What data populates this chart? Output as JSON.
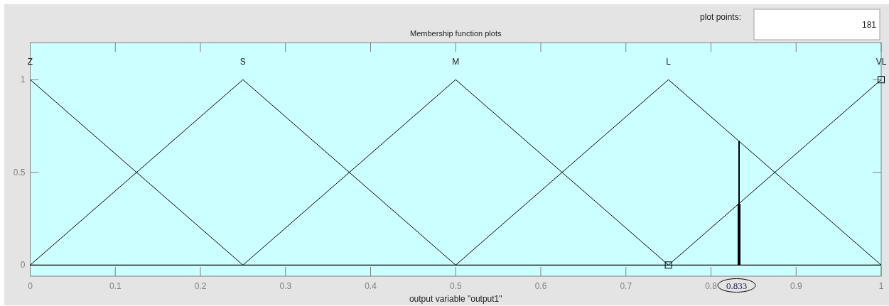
{
  "chart_data": {
    "type": "line",
    "title": "Membership function plots",
    "xlabel": "output variable \"output1\"",
    "xlim": [
      0,
      1
    ],
    "ylim": [
      -0.06,
      1.2
    ],
    "xticks": [
      0,
      0.1,
      0.2,
      0.3,
      0.4,
      0.5,
      0.6,
      0.7,
      0.8,
      0.9,
      1
    ],
    "yticks": [
      0,
      0.5,
      1
    ],
    "series": [
      {
        "name": "Z",
        "color": "#000000",
        "x": [
          0,
          0.25
        ],
        "values": [
          1,
          0
        ]
      },
      {
        "name": "S",
        "color": "#000000",
        "x": [
          0,
          0.25,
          0.5
        ],
        "values": [
          0,
          1,
          0
        ]
      },
      {
        "name": "M",
        "color": "#000000",
        "x": [
          0.25,
          0.5,
          0.75
        ],
        "values": [
          0,
          1,
          0
        ]
      },
      {
        "name": "L",
        "color": "#000000",
        "x": [
          0.5,
          0.75,
          1
        ],
        "values": [
          0,
          1,
          0
        ]
      },
      {
        "name": "VL",
        "color": "#000000",
        "x": [
          0.75,
          1
        ],
        "values": [
          0,
          1
        ],
        "marker": "square"
      },
      {
        "color": "#000000",
        "x": [
          0.833,
          0.833
        ],
        "values": [
          0,
          0.67
        ]
      },
      {
        "color": "#000000",
        "x": [
          0.833,
          0.833
        ],
        "values": [
          0,
          0.33
        ]
      }
    ],
    "ref_lines": [
      {
        "axis": "y",
        "value": 0,
        "color": "#000000"
      }
    ],
    "annotations": [
      "0.833",
      "plot points:",
      "181"
    ]
  }
}
